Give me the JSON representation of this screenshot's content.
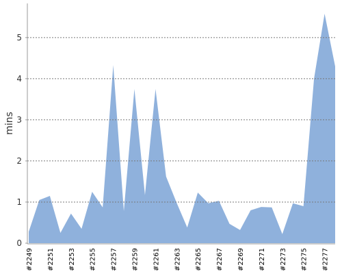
{
  "chart_data": {
    "type": "area",
    "y_label": "mins",
    "color": "#8fb1dc",
    "categories": [
      "#2249",
      null,
      "#2251",
      null,
      "#2253",
      null,
      "#2255",
      null,
      "#2257",
      null,
      "#2259",
      null,
      "#2261",
      null,
      "#2263",
      null,
      "#2265",
      null,
      "#2267",
      null,
      "#2269",
      null,
      "#2271",
      null,
      "#2273",
      null,
      "#2275",
      null,
      "#2277",
      null
    ],
    "values": [
      0.28,
      1.05,
      1.15,
      0.25,
      0.72,
      0.35,
      1.25,
      0.87,
      4.33,
      0.78,
      3.75,
      1.17,
      3.75,
      1.62,
      0.98,
      0.38,
      1.23,
      0.97,
      1.03,
      0.47,
      0.32,
      0.8,
      0.88,
      0.87,
      0.22,
      0.97,
      0.9,
      4.0,
      5.58,
      4.3
    ],
    "ylim": [
      0,
      5.83
    ],
    "yticks": [
      0,
      1,
      2,
      3,
      4,
      5
    ],
    "grid": true
  }
}
